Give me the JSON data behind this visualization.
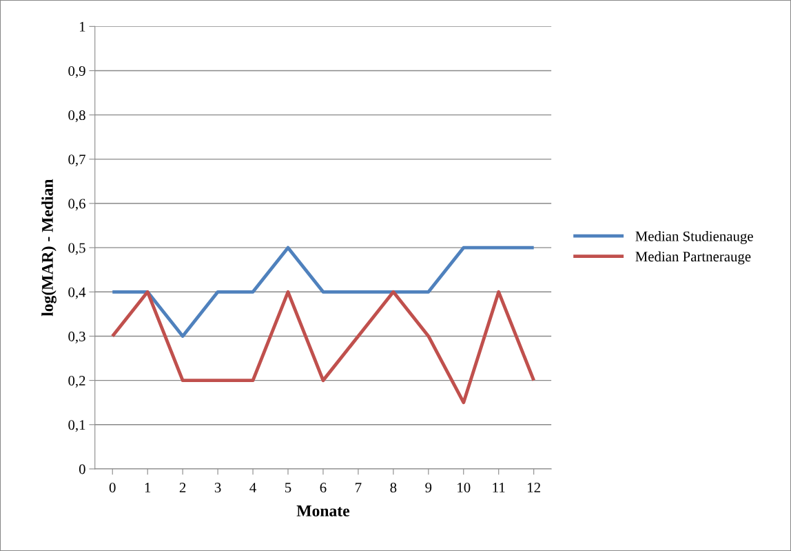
{
  "chart_data": {
    "type": "line",
    "xlabel": "Monate",
    "ylabel": "log(MAR) - Median",
    "categories": [
      "0",
      "1",
      "2",
      "3",
      "4",
      "5",
      "6",
      "7",
      "8",
      "9",
      "10",
      "11",
      "12"
    ],
    "series": [
      {
        "name": "Median Studienauge",
        "color": "#4f81bd",
        "values": [
          0.4,
          0.4,
          0.3,
          0.4,
          0.4,
          0.5,
          0.4,
          0.4,
          0.4,
          0.4,
          0.5,
          0.5,
          0.5
        ]
      },
      {
        "name": "Median Partnerauge",
        "color": "#c0504d",
        "values": [
          0.3,
          0.4,
          0.2,
          0.2,
          0.2,
          0.4,
          0.2,
          0.3,
          0.4,
          0.3,
          0.15,
          0.4,
          0.2
        ]
      }
    ],
    "ylim": [
      0,
      1
    ],
    "yticks": [
      0,
      {
        "value": 0.1,
        "label": "0,1"
      },
      {
        "value": 0.2,
        "label": "0,2"
      },
      {
        "value": 0.3,
        "label": "0,3"
      },
      {
        "value": 0.4,
        "label": "0,4"
      },
      {
        "value": 0.5,
        "label": "0,5"
      },
      {
        "value": 0.6,
        "label": "0,6"
      },
      {
        "value": 0.7,
        "label": "0,7"
      },
      {
        "value": 0.8,
        "label": "0,8"
      },
      {
        "value": 0.9,
        "label": "0,9"
      },
      1
    ],
    "grid": "y",
    "legend": "right",
    "marker": "none",
    "line_style": "solid"
  }
}
